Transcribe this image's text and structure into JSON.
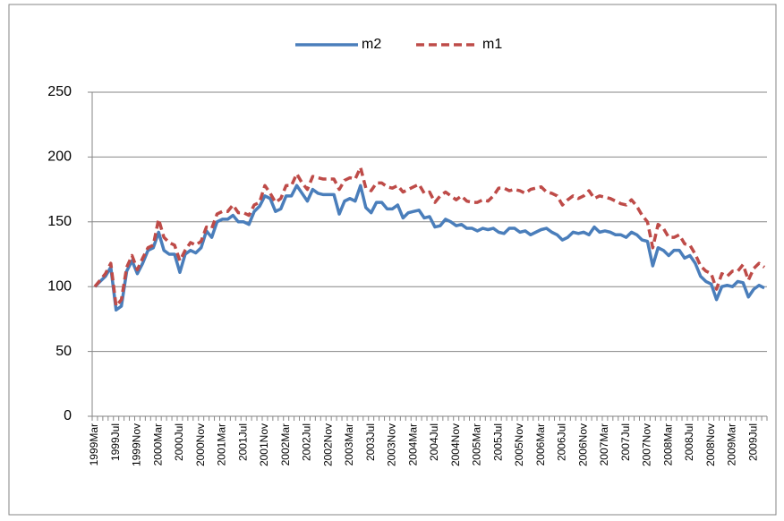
{
  "chart_data": {
    "type": "line",
    "categories": [
      "1999Mar",
      null,
      null,
      null,
      "1999Jul",
      null,
      null,
      null,
      "1999Nov",
      null,
      null,
      null,
      "2000Mar",
      null,
      null,
      null,
      "2000Jul",
      null,
      null,
      null,
      "2000Nov",
      null,
      null,
      null,
      "2001Mar",
      null,
      null,
      null,
      "2001Jul",
      null,
      null,
      null,
      "2001Nov",
      null,
      null,
      null,
      "2002Mar",
      null,
      null,
      null,
      "2002Jul",
      null,
      null,
      null,
      "2002Nov",
      null,
      null,
      null,
      "2003Mar",
      null,
      null,
      null,
      "2003Jul",
      null,
      null,
      null,
      "2003Nov",
      null,
      null,
      null,
      "2004Mar",
      null,
      null,
      null,
      "2004Jul",
      null,
      null,
      null,
      "2004Nov",
      null,
      null,
      null,
      "2005Mar",
      null,
      null,
      null,
      "2005Jul",
      null,
      null,
      null,
      "2005Nov",
      null,
      null,
      null,
      "2006Mar",
      null,
      null,
      null,
      "2006Jul",
      null,
      null,
      null,
      "2006Nov",
      null,
      null,
      null,
      "2007Mar",
      null,
      null,
      null,
      "2007Jul",
      null,
      null,
      null,
      "2007Nov",
      null,
      null,
      null,
      "2008Mar",
      null,
      null,
      null,
      "2008Jul",
      null,
      null,
      null,
      "2008Nov",
      null,
      null,
      null,
      "2009Mar",
      null,
      null,
      null,
      "2009Jul",
      null,
      null
    ],
    "series": [
      {
        "name": "m2",
        "color": "#4a7ebb",
        "dash": false,
        "values": [
          100,
          104,
          108,
          115,
          82,
          85,
          112,
          120,
          110,
          118,
          128,
          130,
          142,
          128,
          125,
          125,
          111,
          125,
          128,
          126,
          130,
          143,
          138,
          150,
          152,
          152,
          155,
          150,
          150,
          148,
          158,
          162,
          170,
          168,
          158,
          160,
          170,
          170,
          178,
          172,
          166,
          175,
          172,
          171,
          171,
          171,
          156,
          166,
          168,
          166,
          178,
          161,
          157,
          165,
          165,
          160,
          160,
          163,
          153,
          157,
          158,
          159,
          153,
          154,
          146,
          147,
          152,
          150,
          147,
          148,
          145,
          145,
          143,
          145,
          144,
          145,
          142,
          141,
          145,
          145,
          142,
          143,
          140,
          142,
          144,
          145,
          142,
          140,
          136,
          138,
          142,
          141,
          142,
          140,
          146,
          142,
          143,
          142,
          140,
          140,
          138,
          142,
          140,
          136,
          135,
          116,
          130,
          128,
          124,
          128,
          128,
          122,
          124,
          118,
          108,
          104,
          102,
          90,
          100,
          101,
          100,
          104,
          103,
          92,
          98,
          101,
          99
        ]
      },
      {
        "name": "m1",
        "color": "#be4b48",
        "dash": true,
        "values": [
          100,
          105,
          110,
          118,
          85,
          90,
          115,
          124,
          113,
          122,
          130,
          132,
          152,
          138,
          134,
          132,
          120,
          128,
          134,
          132,
          135,
          146,
          145,
          156,
          158,
          158,
          163,
          157,
          157,
          155,
          163,
          165,
          178,
          172,
          165,
          168,
          178,
          178,
          187,
          180,
          175,
          185,
          184,
          183,
          183,
          183,
          175,
          182,
          184,
          183,
          192,
          176,
          174,
          180,
          180,
          177,
          176,
          178,
          173,
          175,
          177,
          179,
          172,
          173,
          165,
          170,
          173,
          170,
          167,
          170,
          166,
          165,
          165,
          167,
          166,
          170,
          176,
          176,
          174,
          175,
          174,
          172,
          175,
          176,
          177,
          173,
          172,
          170,
          163,
          167,
          170,
          168,
          170,
          174,
          168,
          170,
          169,
          168,
          166,
          164,
          163,
          167,
          162,
          155,
          150,
          130,
          148,
          145,
          138,
          138,
          140,
          133,
          132,
          125,
          116,
          112,
          110,
          98,
          110,
          108,
          112,
          112,
          117,
          105,
          114,
          118,
          115
        ]
      }
    ],
    "ylim": [
      0,
      250
    ],
    "yticks": [
      0,
      50,
      100,
      150,
      200,
      250
    ],
    "grid": true,
    "legend": "top"
  }
}
